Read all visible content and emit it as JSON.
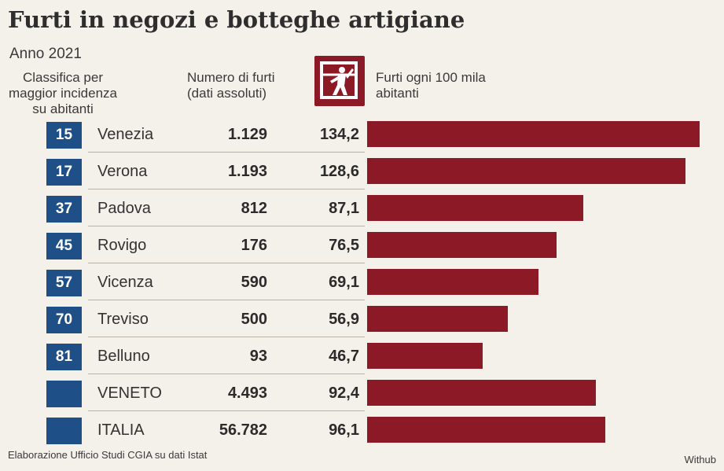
{
  "title": "Furti in negozi e botteghe artigiane",
  "subtitle": "Anno 2021",
  "headers": {
    "rank": "Classifica per maggior incidenza su abitanti",
    "absolute": "Numero di furti (dati assoluti)",
    "rate": "Furti ogni 100 mila abitanti"
  },
  "colors": {
    "bar": "#8c1a26",
    "rank_box": "#1e4f86"
  },
  "logo_icon": "thief-icon",
  "chart_data": {
    "type": "bar",
    "orientation": "horizontal",
    "categories": [
      "Venezia",
      "Verona",
      "Padova",
      "Rovigo",
      "Vicenza",
      "Treviso",
      "Belluno",
      "VENETO",
      "ITALIA"
    ],
    "ranks": [
      "15",
      "17",
      "37",
      "45",
      "57",
      "70",
      "81",
      "",
      ""
    ],
    "absolute_labels": [
      "1.129",
      "1.193",
      "812",
      "176",
      "590",
      "500",
      "93",
      "4.493",
      "56.782"
    ],
    "rate_labels": [
      "134,2",
      "128,6",
      "87,1",
      "76,5",
      "69,1",
      "56,9",
      "46,7",
      "92,4",
      "96,1"
    ],
    "series": [
      {
        "values": [
          134.2,
          128.6,
          87.1,
          76.5,
          69.1,
          56.9,
          46.7,
          92.4,
          96.1
        ]
      }
    ],
    "xlim": [
      0,
      134.2
    ]
  },
  "footer": {
    "source": "Elaborazione Ufficio Studi CGIA su dati Istat",
    "credit": "Withub"
  }
}
